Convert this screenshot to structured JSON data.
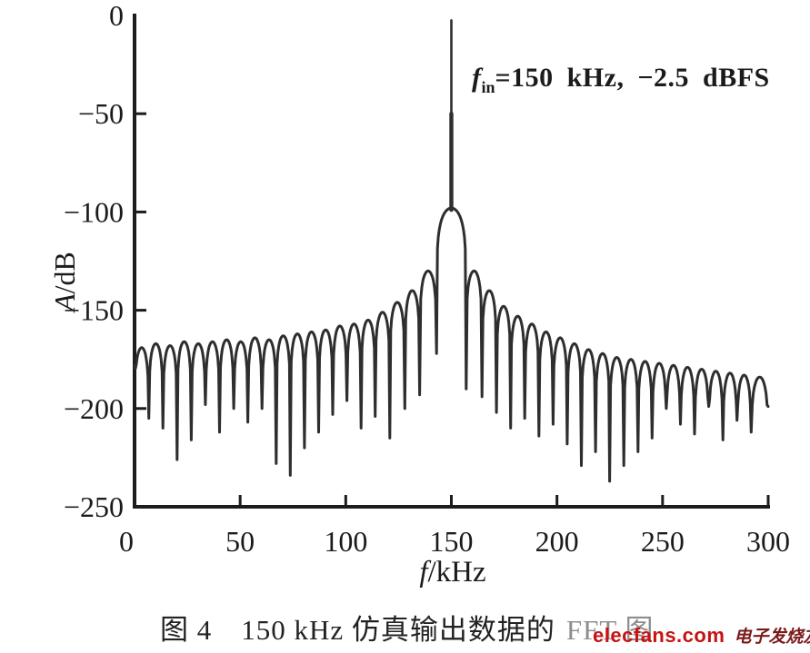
{
  "figure": {
    "caption": {
      "part1": "图 4　150 kHz 仿真输出数据的",
      "part2": "FFT 图"
    },
    "watermark": {
      "site": "elecfans.com",
      "cn": "电子发烧友"
    }
  },
  "annotation": {
    "f": "f",
    "sub": "in",
    "rest": "=150 kHz, −2.5 dBFS"
  },
  "axes": {
    "y_symbol": "A",
    "y_unit": "/dB",
    "x_symbol": "f",
    "x_unit": "/kHz"
  },
  "colors": {
    "curve": "#2e2e2e",
    "axis": "#1c1c1c",
    "text": "#1b1b1b",
    "watermark_red": "#c71212",
    "watermark_dark": "#7a1a1a",
    "caption_faded": "#8d8d8d"
  },
  "chart_data": {
    "type": "line",
    "title": "图 4  150 kHz 仿真输出数据的 FFT 图",
    "xlabel": "f/kHz",
    "ylabel": "A/dB",
    "xlim": [
      0,
      300
    ],
    "ylim": [
      -250,
      0
    ],
    "xticks": [
      0,
      50,
      100,
      150,
      200,
      250,
      300
    ],
    "yticks": [
      0,
      -50,
      -100,
      -150,
      -200,
      -250
    ],
    "grid": false,
    "legend": null,
    "annotation": "fin=150 kHz, −2.5 dBFS",
    "signal": {
      "f_in_kHz": 150,
      "amplitude_dBFS": -2.5
    },
    "spectrum": {
      "peak": {
        "f": 150,
        "top_dB": -2.5
      },
      "main_lobe": {
        "center": 150,
        "top_dB": -98,
        "left_null_f": 143.0,
        "right_null_f": 157.0
      },
      "left_lobes": {
        "outer_edge": 0,
        "inner_edge": 143.0,
        "centers": [
          3.4,
          10.1,
          16.8,
          23.5,
          30.2,
          36.9,
          43.6,
          50.3,
          57.0,
          63.7,
          70.4,
          77.1,
          83.8,
          90.5,
          97.2,
          103.9,
          110.6,
          117.3,
          124.4,
          131.5,
          138.5
        ],
        "peaks_dB": [
          -169,
          -167,
          -168,
          -166,
          -167,
          -166,
          -165,
          -166,
          -164,
          -165,
          -163,
          -162,
          -161,
          -160,
          -158,
          -157,
          -155,
          -151,
          -146,
          -140,
          -130
        ],
        "nulls_dB": [
          -178,
          -205,
          -210,
          -226,
          -216,
          -198,
          -212,
          -200,
          -207,
          -200,
          -228,
          -234,
          -220,
          -212,
          -203,
          -196,
          -210,
          -204,
          -215,
          -200,
          -193,
          -172
        ]
      },
      "right_lobes": {
        "inner_edge": 157.0,
        "outer_edge": 300,
        "centers": [
          161.0,
          168.0,
          174.7,
          181.4,
          188.1,
          194.8,
          201.5,
          208.2,
          214.9,
          221.6,
          228.3,
          235.0,
          241.7,
          248.4,
          255.1,
          261.8,
          268.5,
          275.2,
          281.9,
          288.6,
          295.3
        ],
        "peaks_dB": [
          -130,
          -140,
          -148,
          -153,
          -157,
          -161,
          -164,
          -167,
          -170,
          -172,
          -174,
          -175,
          -176,
          -177,
          -178,
          -179,
          -180,
          -181,
          -182,
          -183,
          -184
        ],
        "nulls_dB": [
          -190,
          -194,
          -202,
          -210,
          -205,
          -214,
          -208,
          -218,
          -229,
          -222,
          -237,
          -229,
          -222,
          -215,
          -200,
          -208,
          -213,
          -199,
          -216,
          -206,
          -212,
          -199
        ]
      }
    }
  }
}
